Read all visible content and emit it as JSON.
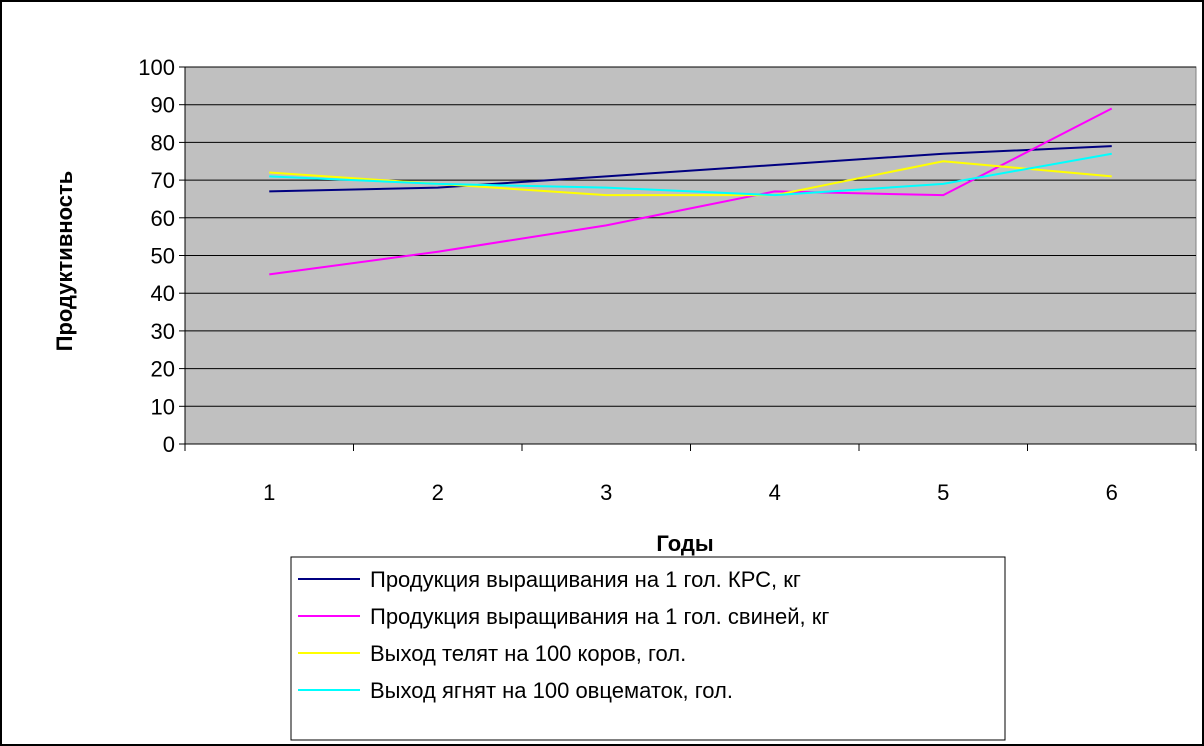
{
  "chart_data": {
    "type": "line",
    "xlabel": "Годы",
    "ylabel": "Продуктивность",
    "categories": [
      "1",
      "2",
      "3",
      "4",
      "5",
      "6"
    ],
    "ylim": [
      0,
      100
    ],
    "yticks": [
      "0",
      "10",
      "20",
      "30",
      "40",
      "50",
      "60",
      "70",
      "80",
      "90",
      "100"
    ],
    "grid": true,
    "plot_background": "#c0c0c0",
    "legend_position": "bottom",
    "series": [
      {
        "name": "Продукция выращивания на 1 гол. КРС, кг",
        "color": "#000080",
        "values": [
          67,
          68,
          71,
          74,
          77,
          79
        ]
      },
      {
        "name": "Продукция выращивания на 1 гол. свиней, кг",
        "color": "#ff00ff",
        "values": [
          45,
          51,
          58,
          67,
          66,
          89
        ]
      },
      {
        "name": "Выход телят на 100 коров, гол.",
        "color": "#ffff00",
        "values": [
          72,
          69,
          66,
          66,
          75,
          71
        ]
      },
      {
        "name": "Выход ягнят на 100 овцематок, гол.",
        "color": "#00ffff",
        "values": [
          71,
          69,
          68,
          66,
          69,
          77
        ]
      }
    ]
  }
}
